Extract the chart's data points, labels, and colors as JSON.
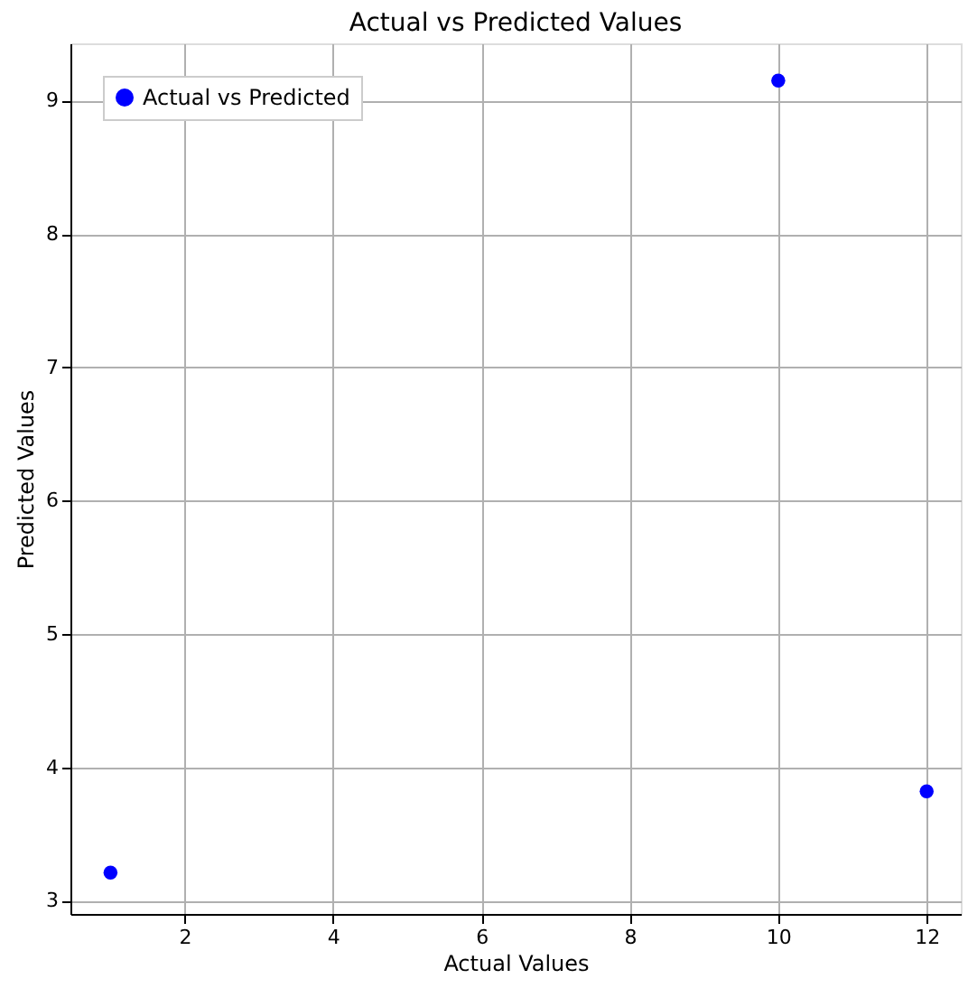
{
  "chart_data": {
    "type": "scatter",
    "title": "Actual vs Predicted Values",
    "xlabel": "Actual Values",
    "ylabel": "Predicted Values",
    "x": [
      1,
      10,
      12
    ],
    "series": [
      {
        "name": "Actual vs Predicted",
        "color": "#0000ff",
        "values": [
          3.21,
          9.15,
          3.82
        ]
      }
    ],
    "xlim": [
      0.46,
      12.46
    ],
    "xticks": [
      2,
      4,
      6,
      8,
      10,
      12
    ],
    "ylim": [
      2.9,
      9.43
    ],
    "yticks": [
      3,
      4,
      5,
      6,
      7,
      8,
      9
    ],
    "grid": true,
    "legend": "top left",
    "marker": "circle"
  }
}
